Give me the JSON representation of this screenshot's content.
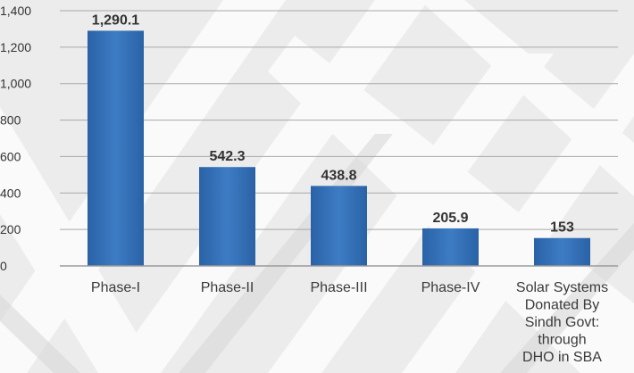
{
  "chart_data": {
    "type": "bar",
    "categories": [
      [
        "Phase-I"
      ],
      [
        "Phase-II"
      ],
      [
        "Phase-III"
      ],
      [
        "Phase-IV"
      ],
      [
        "Solar Systems",
        "Donated By",
        "Sindh Govt:",
        "through",
        "DHO in SBA"
      ]
    ],
    "values": [
      1290.1,
      542.3,
      438.8,
      205.9,
      153
    ],
    "value_labels": [
      "1,290.1",
      "542.3",
      "438.8",
      "205.9",
      "153"
    ],
    "yticks": [
      0,
      200,
      400,
      600,
      800,
      1000,
      1200,
      1400
    ],
    "ytick_labels": [
      "0",
      "200",
      "400",
      "600",
      "800",
      "1,000",
      "1,200",
      "1,400"
    ],
    "ylim": [
      0,
      1400
    ],
    "grid": true,
    "bar_color": "#2f6db3",
    "bar_color_light": "#4a86c9"
  }
}
